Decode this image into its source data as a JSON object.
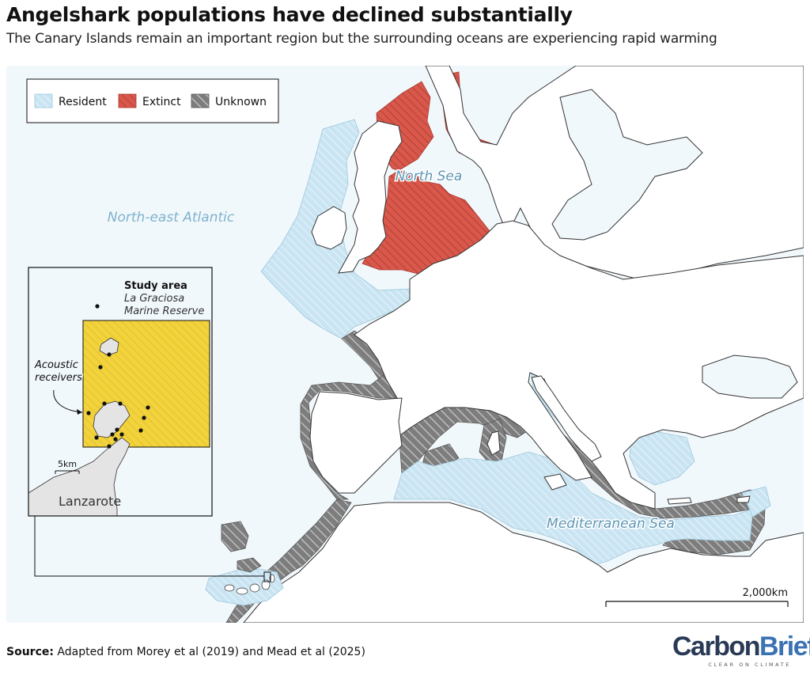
{
  "title": "Angelshark populations have declined substantially",
  "subtitle": "The Canary Islands remain an important region but the surrounding oceans are experiencing rapid warming",
  "legend": [
    {
      "label": "Resident",
      "color": "#c8e3f1",
      "pattern": "hatch-light"
    },
    {
      "label": "Extinct",
      "color": "#d9584b",
      "pattern": "hatch-red"
    },
    {
      "label": "Unknown",
      "color": "#7a7a7a",
      "pattern": "hatch-grey"
    }
  ],
  "map_labels": {
    "atlantic": "North-east Atlantic",
    "north_sea": "North Sea",
    "mediterranean": "Mediterranean Sea",
    "scale": "2,000km"
  },
  "inset": {
    "study_area_title": "Study area",
    "study_area_line1": "La Graciosa",
    "study_area_line2": "Marine Reserve",
    "receivers_line1": "Acoustic",
    "receivers_line2": "receivers",
    "scale": "5km",
    "island": "Lanzarote",
    "study_area_color": "#f2d33c"
  },
  "source": {
    "label": "Source:",
    "text": " Adapted from Morey et al (2019) and Mead et al (2025)"
  },
  "logo": {
    "carbon": "Carbon",
    "brief": "Brief",
    "tagline": "CLEAR ON CLIMATE"
  },
  "colors": {
    "ocean": "#f1f8fc",
    "land": "#ffffff",
    "resident": "#c8e3f1",
    "extinct": "#d9584b",
    "unknown": "#7a7a7a",
    "label_blue": "#7fb2cc"
  }
}
